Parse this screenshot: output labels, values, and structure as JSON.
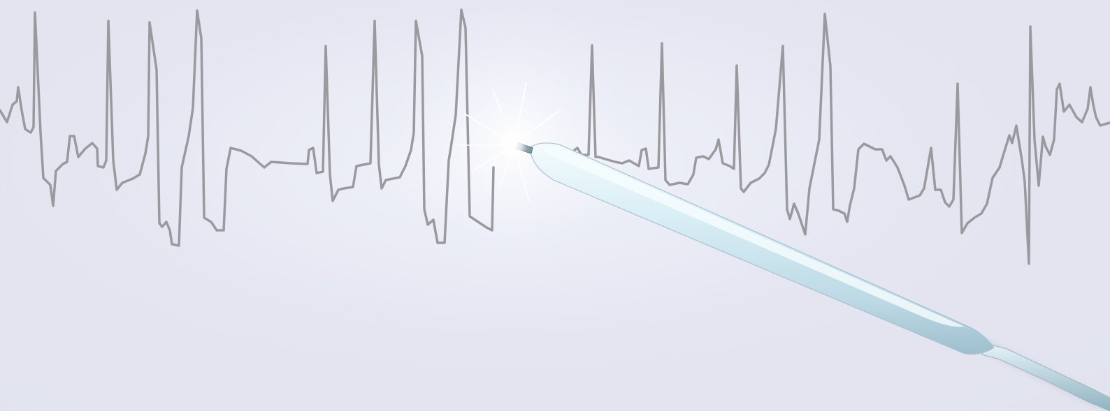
{
  "scene": {
    "description_free": true,
    "colors": {
      "background": "#e4e5f1",
      "ecg_trace": "#9a9a9e",
      "catheter_body": "#cfe6ef",
      "catheter_highlight": "#f2fafc",
      "catheter_shadow": "#9fbfcc",
      "spark": "#ffffff"
    },
    "elements": [
      "ecg-waveform",
      "ablation-catheter",
      "catheter-tip-spark"
    ]
  }
}
